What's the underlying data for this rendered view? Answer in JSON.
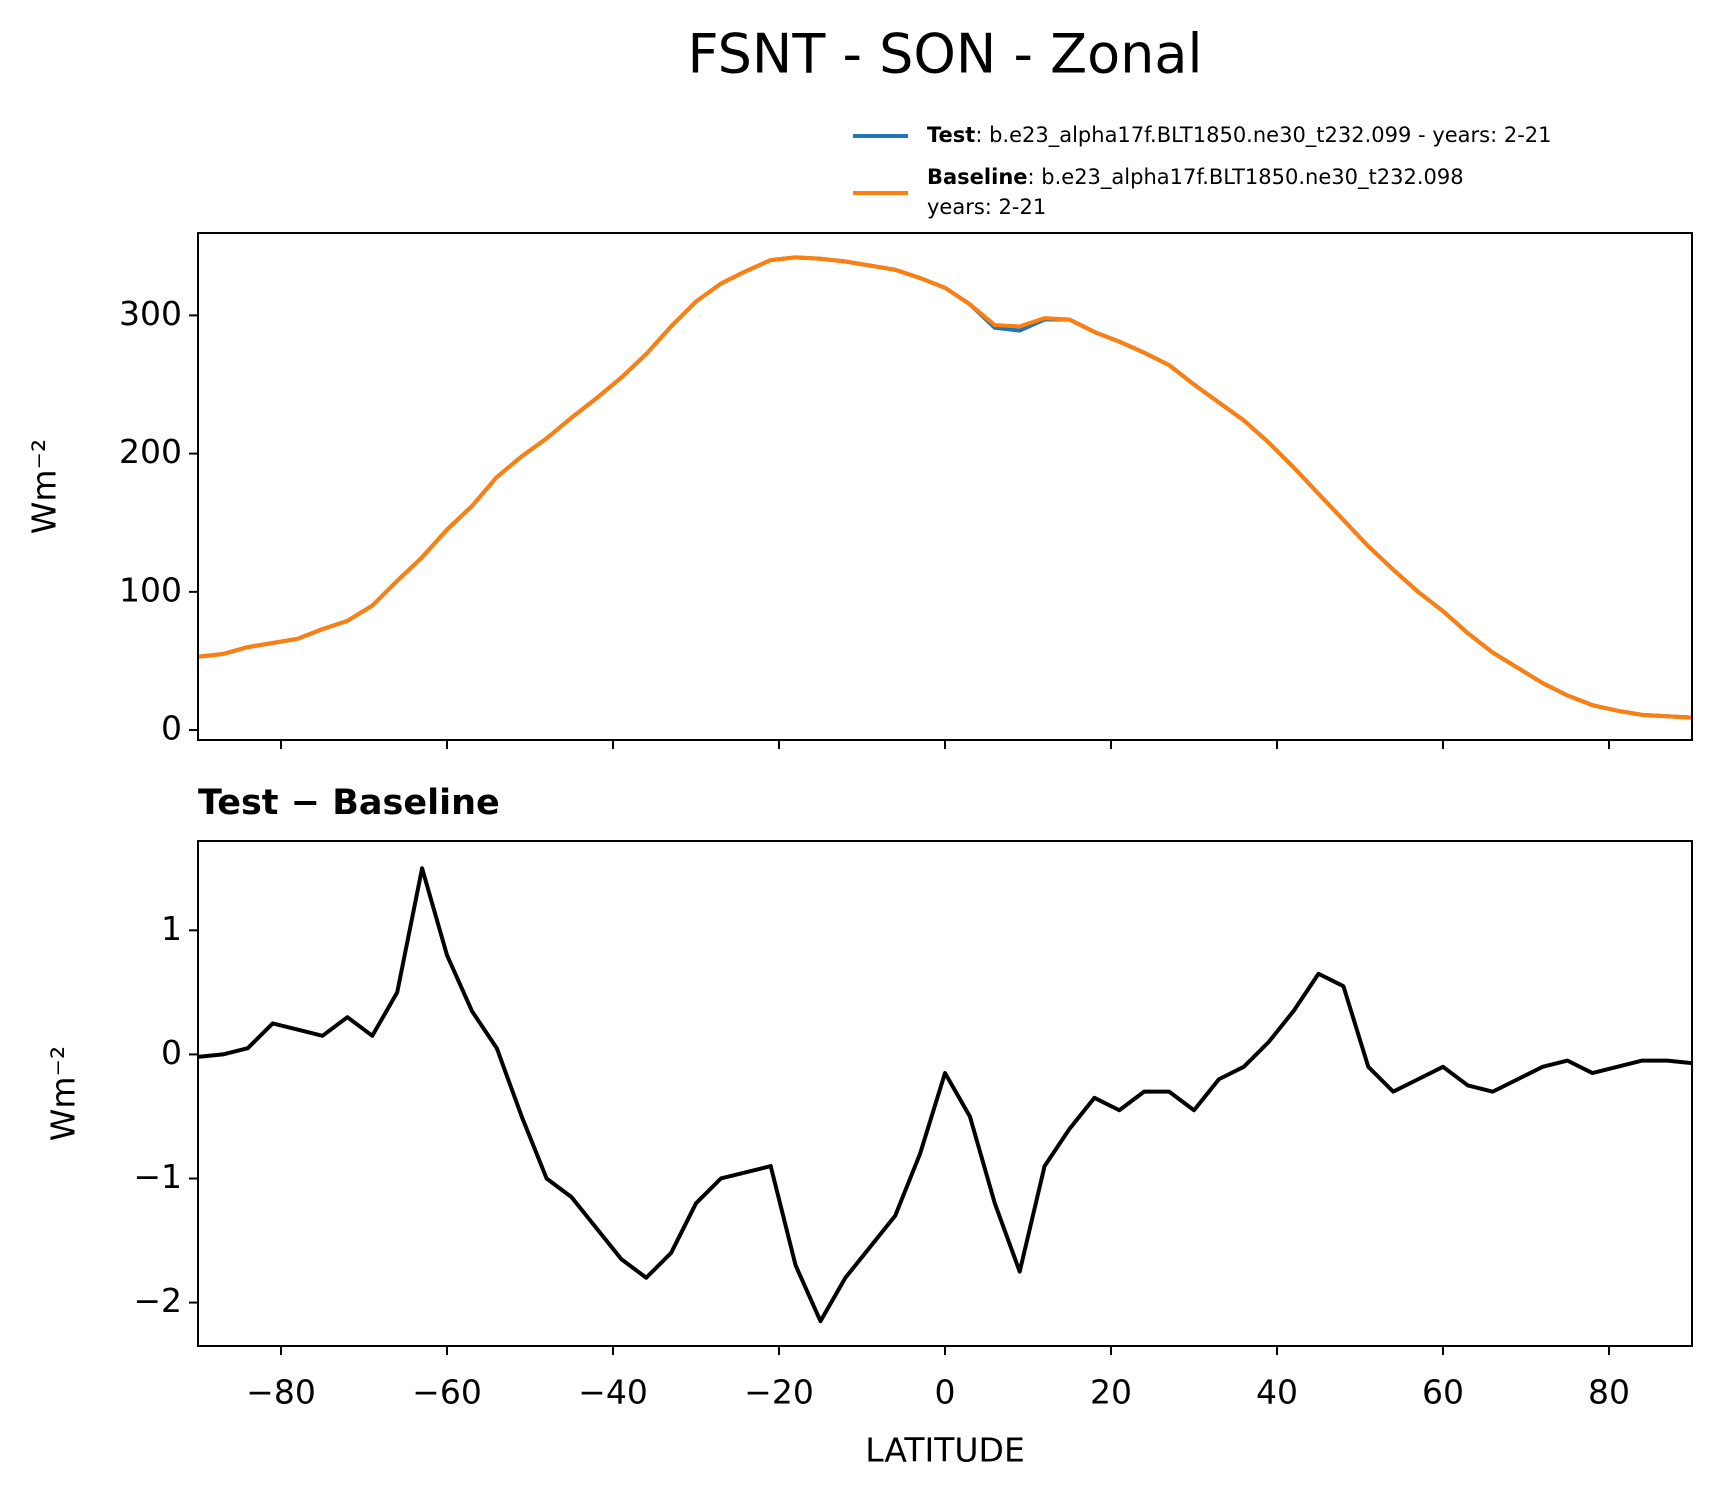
{
  "title": "FSNT - SON - Zonal",
  "chart_data": [
    {
      "type": "line",
      "x": [
        -90,
        -87,
        -84,
        -81,
        -78,
        -75,
        -72,
        -69,
        -66,
        -63,
        -60,
        -57,
        -54,
        -51,
        -48,
        -45,
        -42,
        -39,
        -36,
        -33,
        -30,
        -27,
        -24,
        -21,
        -18,
        -15,
        -12,
        -9,
        -6,
        -3,
        0,
        3,
        6,
        9,
        12,
        15,
        18,
        21,
        24,
        27,
        30,
        33,
        36,
        39,
        42,
        45,
        48,
        51,
        54,
        57,
        60,
        63,
        66,
        69,
        72,
        75,
        78,
        81,
        84,
        87,
        90
      ],
      "ylabel": "Wm⁻²",
      "xlim": [
        -90,
        90
      ],
      "ylim": [
        -7.2,
        359.6
      ],
      "xticks": [
        -80,
        -60,
        -40,
        -20,
        0,
        20,
        40,
        60,
        80
      ],
      "yticks": [
        0,
        100,
        200,
        300
      ],
      "series": [
        {
          "name": "Test",
          "legend_lines": [
            ": b.e23_alpha17f.BLT1850.ne30_t232.099 - years: 2-21"
          ],
          "color": "#1f77b4",
          "values": [
            53,
            55,
            60,
            63,
            66,
            73,
            79,
            90,
            108,
            125,
            145,
            162,
            183,
            198,
            211,
            226,
            240,
            255,
            272,
            292,
            310,
            323,
            332,
            340,
            342,
            341,
            339,
            336,
            333,
            327,
            320,
            308,
            291,
            289,
            297,
            297,
            288,
            281,
            273,
            264,
            250,
            237,
            224,
            208,
            190,
            171,
            152,
            133,
            116,
            100,
            86,
            70,
            56,
            45,
            34,
            25,
            18,
            14,
            11,
            10,
            9
          ]
        },
        {
          "name": "Baseline",
          "legend_lines": [
            ": b.e23_alpha17f.BLT1850.ne30_t232.098",
            "years: 2-21"
          ],
          "color": "#ff7f0e",
          "values": [
            53,
            55,
            60,
            63,
            66,
            73,
            79,
            90,
            108,
            125,
            145,
            162,
            183,
            198,
            211,
            226,
            240,
            255,
            272,
            292,
            310,
            323,
            332,
            340,
            342,
            341,
            339,
            336,
            333,
            327,
            320,
            308,
            293,
            292,
            298,
            297,
            288,
            281,
            273,
            264,
            250,
            237,
            224,
            208,
            190,
            171,
            152,
            133,
            116,
            100,
            86,
            70,
            56,
            45,
            34,
            25,
            18,
            14,
            11,
            10,
            9
          ]
        }
      ]
    },
    {
      "type": "line",
      "title": "Test − Baseline",
      "x": [
        -90,
        -87,
        -84,
        -81,
        -78,
        -75,
        -72,
        -69,
        -66,
        -63,
        -60,
        -57,
        -54,
        -51,
        -48,
        -45,
        -42,
        -39,
        -36,
        -33,
        -30,
        -27,
        -24,
        -21,
        -18,
        -15,
        -12,
        -9,
        -6,
        -3,
        0,
        3,
        6,
        9,
        12,
        15,
        18,
        21,
        24,
        27,
        30,
        33,
        36,
        39,
        42,
        45,
        48,
        51,
        54,
        57,
        60,
        63,
        66,
        69,
        72,
        75,
        78,
        81,
        84,
        87,
        90
      ],
      "xlabel": "LATITUDE",
      "ylabel": "Wm⁻²",
      "xlim": [
        -90,
        90
      ],
      "ylim": [
        -2.35,
        1.72
      ],
      "xticks": [
        {
          "value": -80,
          "label": "−80"
        },
        {
          "value": -60,
          "label": "−60"
        },
        {
          "value": -40,
          "label": "−40"
        },
        {
          "value": -20,
          "label": "−20"
        },
        0,
        20,
        40,
        60,
        80
      ],
      "yticks": [
        {
          "value": -2,
          "label": "−2"
        },
        {
          "value": -1,
          "label": "−1"
        },
        0,
        1
      ],
      "series": [
        {
          "color": "#000000",
          "values": [
            -0.02,
            0.0,
            0.05,
            0.25,
            0.2,
            0.15,
            0.3,
            0.15,
            0.5,
            1.5,
            0.8,
            0.35,
            0.05,
            -0.5,
            -1.0,
            -1.15,
            -1.4,
            -1.65,
            -1.8,
            -1.6,
            -1.2,
            -1.0,
            -0.95,
            -0.9,
            -1.7,
            -2.15,
            -1.8,
            -1.55,
            -1.3,
            -0.8,
            -0.15,
            -0.5,
            -1.2,
            -1.75,
            -0.9,
            -0.6,
            -0.35,
            -0.45,
            -0.3,
            -0.3,
            -0.45,
            -0.2,
            -0.1,
            0.1,
            0.35,
            0.65,
            0.55,
            -0.1,
            -0.3,
            -0.2,
            -0.1,
            -0.25,
            -0.3,
            -0.2,
            -0.1,
            -0.05,
            -0.15,
            -0.1,
            -0.05,
            -0.05,
            -0.07
          ]
        }
      ]
    }
  ]
}
